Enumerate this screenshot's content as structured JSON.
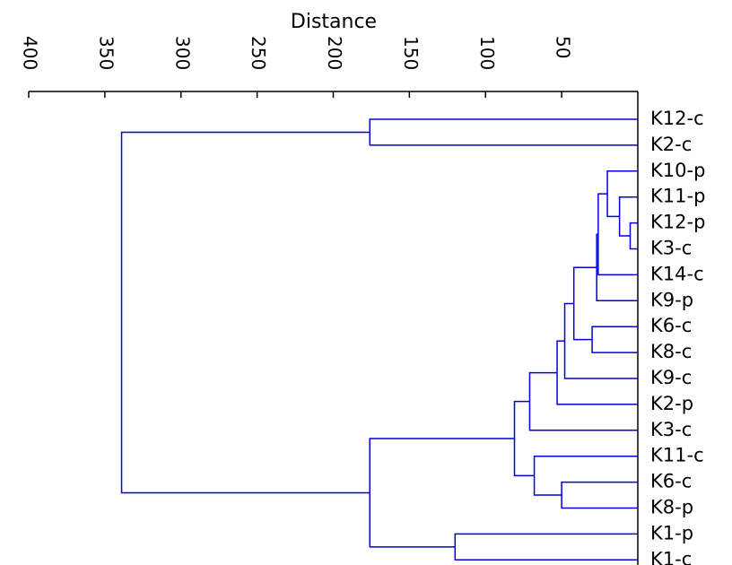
{
  "chart_data": {
    "type": "dendrogram",
    "orientation": "right",
    "xlabel": "Distance",
    "xlim": [
      0,
      400
    ],
    "x_ticks": [
      400,
      350,
      300,
      250,
      200,
      150,
      100,
      50
    ],
    "line_color": "#0000dd",
    "leaves": [
      "K12-c",
      "K2-c",
      "K10-p",
      "K11-p",
      "K12-p",
      "K3-c",
      "K14-c",
      "K9-p",
      "K6-c",
      "K8-c",
      "K9-c",
      "K2-p",
      "K3-c",
      "K11-c",
      "K6-c",
      "K8-p",
      "K1-p",
      "K1-c"
    ],
    "merges": [
      {
        "id": "n1",
        "children": [
          "L4",
          "L5"
        ],
        "distance": 5
      },
      {
        "id": "n2",
        "children": [
          "L3",
          "n1"
        ],
        "distance": 12
      },
      {
        "id": "n3",
        "children": [
          "L2",
          "n2"
        ],
        "distance": 20
      },
      {
        "id": "n4",
        "children": [
          "n3",
          "L6"
        ],
        "distance": 26
      },
      {
        "id": "n5",
        "children": [
          "n4",
          "L7"
        ],
        "distance": 27
      },
      {
        "id": "n6",
        "children": [
          "L8",
          "L9"
        ],
        "distance": 30
      },
      {
        "id": "n7",
        "children": [
          "n5",
          "n6"
        ],
        "distance": 42
      },
      {
        "id": "n8",
        "children": [
          "n7",
          "L10"
        ],
        "distance": 48
      },
      {
        "id": "n9",
        "children": [
          "n8",
          "L11"
        ],
        "distance": 53
      },
      {
        "id": "n10",
        "children": [
          "L14",
          "L15"
        ],
        "distance": 50
      },
      {
        "id": "n11",
        "children": [
          "n9",
          "L12"
        ],
        "distance": 71
      },
      {
        "id": "n12",
        "children": [
          "L13",
          "n10"
        ],
        "distance": 68
      },
      {
        "id": "n13",
        "children": [
          "n11",
          "n12"
        ],
        "distance": 81
      },
      {
        "id": "n14",
        "children": [
          "L16",
          "L17"
        ],
        "distance": 120
      },
      {
        "id": "n15",
        "children": [
          "n13",
          "n14"
        ],
        "distance": 176
      },
      {
        "id": "n16",
        "children": [
          "L0",
          "L1"
        ],
        "distance": 176
      },
      {
        "id": "n17",
        "children": [
          "n16",
          "n15"
        ],
        "distance": 339
      }
    ]
  }
}
